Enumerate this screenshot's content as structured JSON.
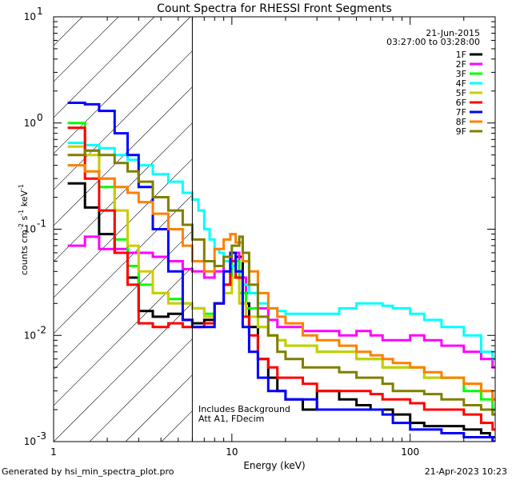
{
  "chart_data": {
    "type": "line",
    "title": "Count Spectra for RHESSI Front Segments",
    "xlabel": "Energy (keV)",
    "ylabel": "counts cm-2 s-1 keV-1",
    "xscale": "log",
    "yscale": "log",
    "xlim": [
      1,
      300
    ],
    "ylim": [
      0.001,
      10
    ],
    "x_tick_labels": [
      "1",
      "10",
      "100"
    ],
    "y_tick_labels": [
      "10^-3",
      "10^-2",
      "10^-1",
      "10^0",
      "10^1"
    ],
    "date": "21-Jun-2015",
    "time_range": "03:27:00 to 03:28:00",
    "hatched_region_upper_keV": 6,
    "annotation_lines": [
      "Includes Background",
      "Att A1, FDecim"
    ],
    "series": [
      {
        "name": "1F",
        "color": "#000000",
        "points": [
          [
            1.2,
            0.27
          ],
          [
            1.5,
            0.16
          ],
          [
            1.8,
            0.09
          ],
          [
            2.2,
            0.06
          ],
          [
            2.6,
            0.035
          ],
          [
            3.0,
            0.017
          ],
          [
            3.6,
            0.015
          ],
          [
            4.4,
            0.016
          ],
          [
            5.3,
            0.014
          ],
          [
            6.0,
            0.013
          ],
          [
            7.0,
            0.014
          ],
          [
            8.0,
            0.02
          ],
          [
            9.0,
            0.03
          ],
          [
            9.8,
            0.045
          ],
          [
            10.5,
            0.055
          ],
          [
            11.5,
            0.02
          ],
          [
            12.5,
            0.012
          ],
          [
            14,
            0.006
          ],
          [
            16,
            0.004
          ],
          [
            18,
            0.003
          ],
          [
            20,
            0.0025
          ],
          [
            25,
            0.002
          ],
          [
            30,
            0.003
          ],
          [
            40,
            0.0025
          ],
          [
            50,
            0.0022
          ],
          [
            60,
            0.002
          ],
          [
            70,
            0.002
          ],
          [
            80,
            0.0018
          ],
          [
            100,
            0.0015
          ],
          [
            120,
            0.0014
          ],
          [
            150,
            0.0014
          ],
          [
            200,
            0.0013
          ],
          [
            250,
            0.0012
          ],
          [
            280,
            0.0011
          ]
        ]
      },
      {
        "name": "2F",
        "color": "#ff00ff",
        "points": [
          [
            1.2,
            0.07
          ],
          [
            1.5,
            0.085
          ],
          [
            1.8,
            0.065
          ],
          [
            2.2,
            0.065
          ],
          [
            2.6,
            0.06
          ],
          [
            3.0,
            0.06
          ],
          [
            3.6,
            0.055
          ],
          [
            4.4,
            0.05
          ],
          [
            5.3,
            0.042
          ],
          [
            6.0,
            0.04
          ],
          [
            7.0,
            0.035
          ],
          [
            8.0,
            0.04
          ],
          [
            9.0,
            0.05
          ],
          [
            10.0,
            0.06
          ],
          [
            11,
            0.035
          ],
          [
            12,
            0.025
          ],
          [
            14,
            0.018
          ],
          [
            16,
            0.014
          ],
          [
            18,
            0.012
          ],
          [
            20,
            0.012
          ],
          [
            25,
            0.011
          ],
          [
            30,
            0.011
          ],
          [
            40,
            0.01
          ],
          [
            50,
            0.011
          ],
          [
            60,
            0.01
          ],
          [
            70,
            0.009
          ],
          [
            80,
            0.009
          ],
          [
            100,
            0.01
          ],
          [
            120,
            0.009
          ],
          [
            150,
            0.008
          ],
          [
            200,
            0.007
          ],
          [
            250,
            0.006
          ],
          [
            290,
            0.005
          ]
        ]
      },
      {
        "name": "3F",
        "color": "#00ff00",
        "points": [
          [
            1.2,
            1.0
          ],
          [
            1.5,
            0.55
          ],
          [
            1.8,
            0.25
          ],
          [
            2.2,
            0.08
          ],
          [
            2.6,
            0.045
          ],
          [
            3.0,
            0.03
          ],
          [
            3.6,
            0.025
          ],
          [
            4.4,
            0.022
          ],
          [
            5.3,
            0.02
          ],
          [
            6.0,
            0.018
          ],
          [
            7.0,
            0.016
          ],
          [
            8.0,
            0.02
          ],
          [
            9.0,
            0.03
          ],
          [
            10.0,
            0.05
          ],
          [
            11,
            0.025
          ],
          [
            12,
            0.018
          ],
          [
            14,
            0.012
          ],
          [
            16,
            0.01
          ],
          [
            18,
            0.009
          ],
          [
            20,
            0.008
          ],
          [
            25,
            0.008
          ],
          [
            30,
            0.007
          ],
          [
            40,
            0.007
          ],
          [
            50,
            0.006
          ],
          [
            60,
            0.006
          ],
          [
            70,
            0.005
          ],
          [
            80,
            0.005
          ],
          [
            100,
            0.005
          ],
          [
            120,
            0.004
          ],
          [
            150,
            0.004
          ],
          [
            200,
            0.003
          ],
          [
            250,
            0.0025
          ],
          [
            290,
            0.002
          ]
        ]
      },
      {
        "name": "4F",
        "color": "#00ffff",
        "points": [
          [
            1.2,
            0.65
          ],
          [
            1.5,
            0.62
          ],
          [
            1.8,
            0.58
          ],
          [
            2.2,
            0.5
          ],
          [
            2.6,
            0.45
          ],
          [
            3.0,
            0.4
          ],
          [
            3.6,
            0.33
          ],
          [
            4.4,
            0.28
          ],
          [
            5.3,
            0.22
          ],
          [
            6.0,
            0.19
          ],
          [
            6.5,
            0.15
          ],
          [
            7.0,
            0.1
          ],
          [
            7.5,
            0.08
          ],
          [
            8.0,
            0.065
          ],
          [
            8.5,
            0.06
          ],
          [
            9.0,
            0.05
          ],
          [
            9.8,
            0.045
          ],
          [
            10.5,
            0.04
          ],
          [
            11.5,
            0.03
          ],
          [
            12.5,
            0.025
          ],
          [
            14,
            0.02
          ],
          [
            16,
            0.018
          ],
          [
            18,
            0.017
          ],
          [
            20,
            0.016
          ],
          [
            25,
            0.016
          ],
          [
            30,
            0.016
          ],
          [
            40,
            0.018
          ],
          [
            50,
            0.02
          ],
          [
            60,
            0.02
          ],
          [
            70,
            0.019
          ],
          [
            80,
            0.018
          ],
          [
            100,
            0.016
          ],
          [
            120,
            0.014
          ],
          [
            150,
            0.012
          ],
          [
            200,
            0.01
          ],
          [
            250,
            0.007
          ],
          [
            290,
            0.006
          ]
        ]
      },
      {
        "name": "5F",
        "color": "#cccc00",
        "points": [
          [
            1.2,
            0.6
          ],
          [
            1.5,
            0.5
          ],
          [
            1.8,
            0.3
          ],
          [
            2.2,
            0.15
          ],
          [
            2.6,
            0.07
          ],
          [
            3.0,
            0.04
          ],
          [
            3.6,
            0.025
          ],
          [
            4.4,
            0.02
          ],
          [
            5.3,
            0.02
          ],
          [
            6.0,
            0.018
          ],
          [
            7.0,
            0.015
          ],
          [
            8.0,
            0.02
          ],
          [
            9.0,
            0.025
          ],
          [
            10.0,
            0.035
          ],
          [
            11,
            0.02
          ],
          [
            12,
            0.015
          ],
          [
            14,
            0.012
          ],
          [
            16,
            0.01
          ],
          [
            18,
            0.009
          ],
          [
            20,
            0.008
          ],
          [
            25,
            0.008
          ],
          [
            30,
            0.007
          ],
          [
            40,
            0.007
          ],
          [
            50,
            0.006
          ],
          [
            60,
            0.006
          ],
          [
            70,
            0.005
          ],
          [
            80,
            0.005
          ],
          [
            100,
            0.005
          ],
          [
            120,
            0.004
          ],
          [
            150,
            0.004
          ],
          [
            200,
            0.0035
          ],
          [
            250,
            0.003
          ],
          [
            290,
            0.0025
          ]
        ]
      },
      {
        "name": "6F",
        "color": "#ff0000",
        "points": [
          [
            1.2,
            0.9
          ],
          [
            1.5,
            0.3
          ],
          [
            1.8,
            0.15
          ],
          [
            2.2,
            0.06
          ],
          [
            2.6,
            0.03
          ],
          [
            3.0,
            0.013
          ],
          [
            3.6,
            0.012
          ],
          [
            4.4,
            0.013
          ],
          [
            5.3,
            0.012
          ],
          [
            6.0,
            0.012
          ],
          [
            7.0,
            0.013
          ],
          [
            8.0,
            0.02
          ],
          [
            9.0,
            0.03
          ],
          [
            9.8,
            0.05
          ],
          [
            10.5,
            0.035
          ],
          [
            11.5,
            0.015
          ],
          [
            12.5,
            0.01
          ],
          [
            14,
            0.006
          ],
          [
            16,
            0.005
          ],
          [
            18,
            0.004
          ],
          [
            20,
            0.004
          ],
          [
            25,
            0.0035
          ],
          [
            30,
            0.003
          ],
          [
            40,
            0.003
          ],
          [
            50,
            0.003
          ],
          [
            60,
            0.0028
          ],
          [
            70,
            0.0025
          ],
          [
            80,
            0.0025
          ],
          [
            100,
            0.0023
          ],
          [
            120,
            0.002
          ],
          [
            150,
            0.002
          ],
          [
            200,
            0.0018
          ],
          [
            250,
            0.0015
          ],
          [
            290,
            0.0013
          ]
        ]
      },
      {
        "name": "7F",
        "color": "#0000ff",
        "points": [
          [
            1.2,
            1.55
          ],
          [
            1.5,
            1.5
          ],
          [
            1.8,
            1.3
          ],
          [
            2.2,
            0.8
          ],
          [
            2.6,
            0.5
          ],
          [
            3.0,
            0.25
          ],
          [
            3.6,
            0.1
          ],
          [
            4.4,
            0.04
          ],
          [
            5.3,
            0.014
          ],
          [
            6.0,
            0.012
          ],
          [
            7.0,
            0.012
          ],
          [
            8.0,
            0.02
          ],
          [
            9.0,
            0.04
          ],
          [
            9.8,
            0.06
          ],
          [
            10.5,
            0.04
          ],
          [
            11.5,
            0.012
          ],
          [
            12.5,
            0.007
          ],
          [
            14,
            0.004
          ],
          [
            16,
            0.003
          ],
          [
            18,
            0.003
          ],
          [
            20,
            0.0025
          ],
          [
            25,
            0.0025
          ],
          [
            30,
            0.002
          ],
          [
            40,
            0.002
          ],
          [
            50,
            0.002
          ],
          [
            60,
            0.002
          ],
          [
            70,
            0.0018
          ],
          [
            80,
            0.0015
          ],
          [
            100,
            0.0013
          ],
          [
            120,
            0.0013
          ],
          [
            150,
            0.0012
          ],
          [
            200,
            0.0011
          ],
          [
            250,
            0.0011
          ],
          [
            290,
            0.001
          ]
        ]
      },
      {
        "name": "8F",
        "color": "#ff7f00",
        "points": [
          [
            1.2,
            0.4
          ],
          [
            1.5,
            0.35
          ],
          [
            1.8,
            0.3
          ],
          [
            2.2,
            0.25
          ],
          [
            2.6,
            0.22
          ],
          [
            3.0,
            0.18
          ],
          [
            3.6,
            0.14
          ],
          [
            4.4,
            0.1
          ],
          [
            5.3,
            0.07
          ],
          [
            6.0,
            0.05
          ],
          [
            7.0,
            0.04
          ],
          [
            8.0,
            0.065
          ],
          [
            9.0,
            0.08
          ],
          [
            9.8,
            0.09
          ],
          [
            10.5,
            0.075
          ],
          [
            11.5,
            0.05
          ],
          [
            12.5,
            0.04
          ],
          [
            14,
            0.025
          ],
          [
            16,
            0.018
          ],
          [
            18,
            0.015
          ],
          [
            20,
            0.013
          ],
          [
            25,
            0.01
          ],
          [
            30,
            0.009
          ],
          [
            40,
            0.008
          ],
          [
            50,
            0.007
          ],
          [
            60,
            0.0065
          ],
          [
            70,
            0.006
          ],
          [
            80,
            0.0055
          ],
          [
            100,
            0.005
          ],
          [
            120,
            0.0045
          ],
          [
            150,
            0.004
          ],
          [
            200,
            0.0035
          ],
          [
            250,
            0.003
          ],
          [
            290,
            0.0025
          ]
        ]
      },
      {
        "name": "9F",
        "color": "#7f7f00",
        "points": [
          [
            1.2,
            0.5
          ],
          [
            1.5,
            0.55
          ],
          [
            1.8,
            0.5
          ],
          [
            2.2,
            0.42
          ],
          [
            2.6,
            0.35
          ],
          [
            3.0,
            0.28
          ],
          [
            3.6,
            0.2
          ],
          [
            4.4,
            0.15
          ],
          [
            5.3,
            0.11
          ],
          [
            6.0,
            0.08
          ],
          [
            7.0,
            0.05
          ],
          [
            8.0,
            0.045
          ],
          [
            9.0,
            0.055
          ],
          [
            10.0,
            0.07
          ],
          [
            11,
            0.085
          ],
          [
            11.5,
            0.06
          ],
          [
            12.5,
            0.03
          ],
          [
            14,
            0.015
          ],
          [
            16,
            0.01
          ],
          [
            18,
            0.007
          ],
          [
            20,
            0.006
          ],
          [
            25,
            0.005
          ],
          [
            30,
            0.005
          ],
          [
            40,
            0.0045
          ],
          [
            50,
            0.004
          ],
          [
            60,
            0.004
          ],
          [
            70,
            0.0035
          ],
          [
            80,
            0.003
          ],
          [
            100,
            0.003
          ],
          [
            120,
            0.0028
          ],
          [
            150,
            0.0025
          ],
          [
            200,
            0.0022
          ],
          [
            250,
            0.002
          ],
          [
            290,
            0.0018
          ]
        ]
      }
    ]
  },
  "footer": {
    "generated_by": "Generated by hsi_min_spectra_plot.pro",
    "timestamp": "21-Apr-2023 10:23"
  }
}
